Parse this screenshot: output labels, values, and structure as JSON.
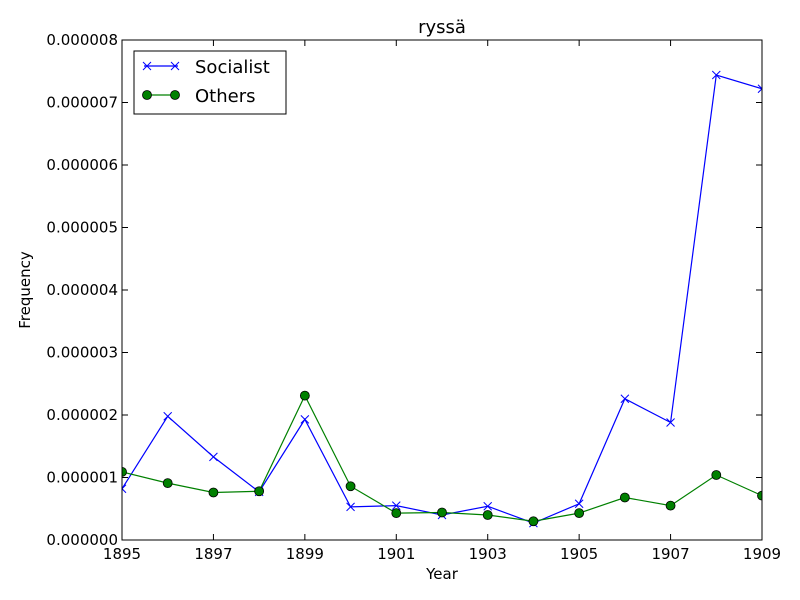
{
  "chart_data": {
    "type": "line",
    "title": "ryssä",
    "xlabel": "Year",
    "ylabel": "Frequency",
    "xlim": [
      1895,
      1909
    ],
    "ylim": [
      0,
      8e-06
    ],
    "x_ticks": [
      1895,
      1897,
      1899,
      1901,
      1903,
      1905,
      1907,
      1909
    ],
    "x_tick_labels": [
      "1895",
      "1897",
      "1899",
      "1901",
      "1903",
      "1905",
      "1907",
      "1909"
    ],
    "y_ticks": [
      0,
      1e-06,
      2e-06,
      3e-06,
      4e-06,
      5e-06,
      6e-06,
      7e-06,
      8e-06
    ],
    "y_tick_labels": [
      "0.000000",
      "0.000001",
      "0.000002",
      "0.000003",
      "0.000004",
      "0.000005",
      "0.000006",
      "0.000007",
      "0.000008"
    ],
    "grid": false,
    "legend_position": "top-left",
    "x": [
      1895,
      1896,
      1897,
      1898,
      1899,
      1900,
      1901,
      1902,
      1903,
      1904,
      1905,
      1906,
      1907,
      1908,
      1909
    ],
    "series": [
      {
        "name": "Socialist",
        "color": "#0000ff",
        "marker": "x",
        "values": [
          8.2e-07,
          1.98e-06,
          1.33e-06,
          7.7e-07,
          1.93e-06,
          5.3e-07,
          5.5e-07,
          4e-07,
          5.4e-07,
          2.7e-07,
          5.8e-07,
          2.26e-06,
          1.88e-06,
          7.44e-06,
          7.22e-06
        ]
      },
      {
        "name": "Others",
        "color": "#008000",
        "marker": "o",
        "values": [
          1.09e-06,
          9.1e-07,
          7.6e-07,
          7.8e-07,
          2.31e-06,
          8.6e-07,
          4.3e-07,
          4.4e-07,
          4e-07,
          3e-07,
          4.3e-07,
          6.8e-07,
          5.5e-07,
          1.04e-06,
          7.1e-07
        ]
      }
    ]
  }
}
